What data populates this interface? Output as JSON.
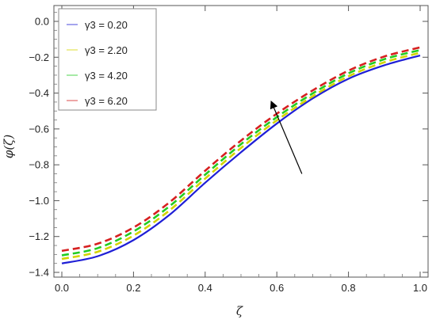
{
  "chart_data": {
    "type": "line",
    "xlabel": "ζ",
    "ylabel": "φ(ζ)",
    "xlim": [
      0,
      1.0
    ],
    "ylim": [
      -1.4,
      0.07
    ],
    "xticks": [
      "0.0",
      "0.2",
      "0.4",
      "0.6",
      "0.8",
      "1.0"
    ],
    "yticks": [
      "−1.4",
      "−1.2",
      "−1.0",
      "−0.8",
      "−0.6",
      "−0.4",
      "−0.2",
      "0.0"
    ],
    "grid": false,
    "legend_position": "top-left",
    "x": [
      0.0,
      0.1,
      0.2,
      0.3,
      0.4,
      0.5,
      0.6,
      0.7,
      0.8,
      0.9,
      1.0
    ],
    "series": [
      {
        "name": "γ3 = 0.20",
        "color": "#1f1fd6",
        "style": "solid",
        "values": [
          -1.35,
          -1.31,
          -1.22,
          -1.08,
          -0.9,
          -0.73,
          -0.57,
          -0.43,
          -0.32,
          -0.245,
          -0.19
        ]
      },
      {
        "name": "γ3 = 2.20",
        "color": "#d4d400",
        "style": "dashed",
        "values": [
          -1.325,
          -1.285,
          -1.195,
          -1.055,
          -0.877,
          -0.706,
          -0.552,
          -0.418,
          -0.306,
          -0.228,
          -0.175
        ]
      },
      {
        "name": "γ3 = 4.20",
        "color": "#22cc22",
        "style": "dashed",
        "values": [
          -1.305,
          -1.265,
          -1.172,
          -1.032,
          -0.855,
          -0.685,
          -0.534,
          -0.402,
          -0.29,
          -0.211,
          -0.16
        ]
      },
      {
        "name": "γ3 = 6.20",
        "color": "#d62020",
        "style": "dashed",
        "values": [
          -1.28,
          -1.24,
          -1.15,
          -1.01,
          -0.833,
          -0.665,
          -0.515,
          -0.385,
          -0.275,
          -0.196,
          -0.145
        ]
      }
    ],
    "annotation": {
      "type": "arrow",
      "from": [
        0.67,
        -0.85
      ],
      "to": [
        0.585,
        -0.45
      ]
    }
  },
  "legend": {
    "items": [
      {
        "label": "γ3 = 0.20",
        "color": "#1f1fd6"
      },
      {
        "label": "γ3 = 2.20",
        "color": "#d4d400"
      },
      {
        "label": "γ3 = 4.20",
        "color": "#22cc22"
      },
      {
        "label": "γ3 = 6.20",
        "color": "#d62020"
      }
    ]
  }
}
